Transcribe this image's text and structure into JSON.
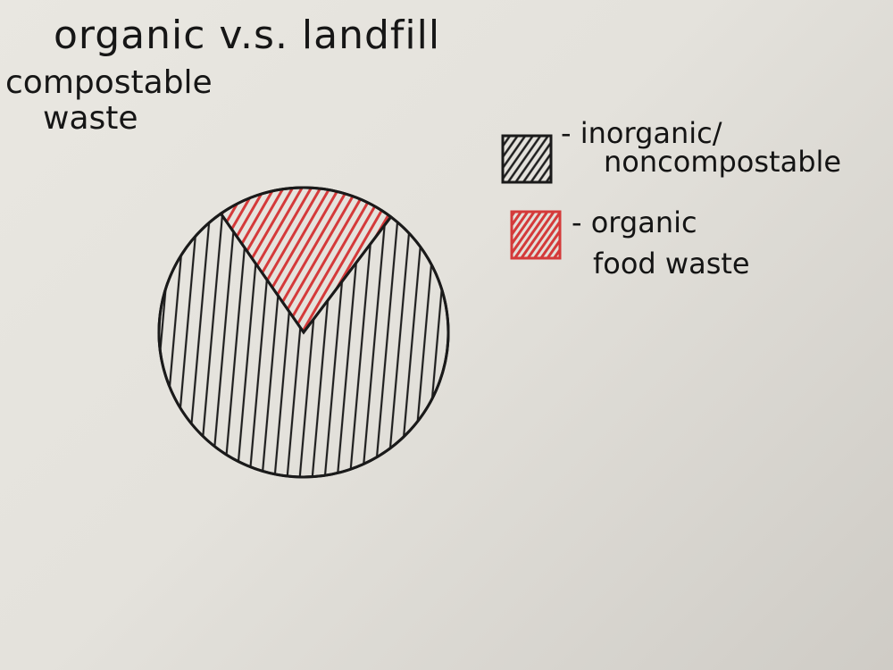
{
  "chart_data": {
    "type": "pie",
    "title_lines": [
      "organic v.s. landfill",
      "compostable",
      "waste"
    ],
    "slices": [
      {
        "label_lines": [
          "- inorganic/",
          "noncompostable"
        ],
        "value": 80,
        "color": "#2a2a2a"
      },
      {
        "label_lines": [
          "- organic",
          "food waste"
        ],
        "value": 20,
        "color": "#d43a3a"
      }
    ],
    "legend_position": "right"
  }
}
